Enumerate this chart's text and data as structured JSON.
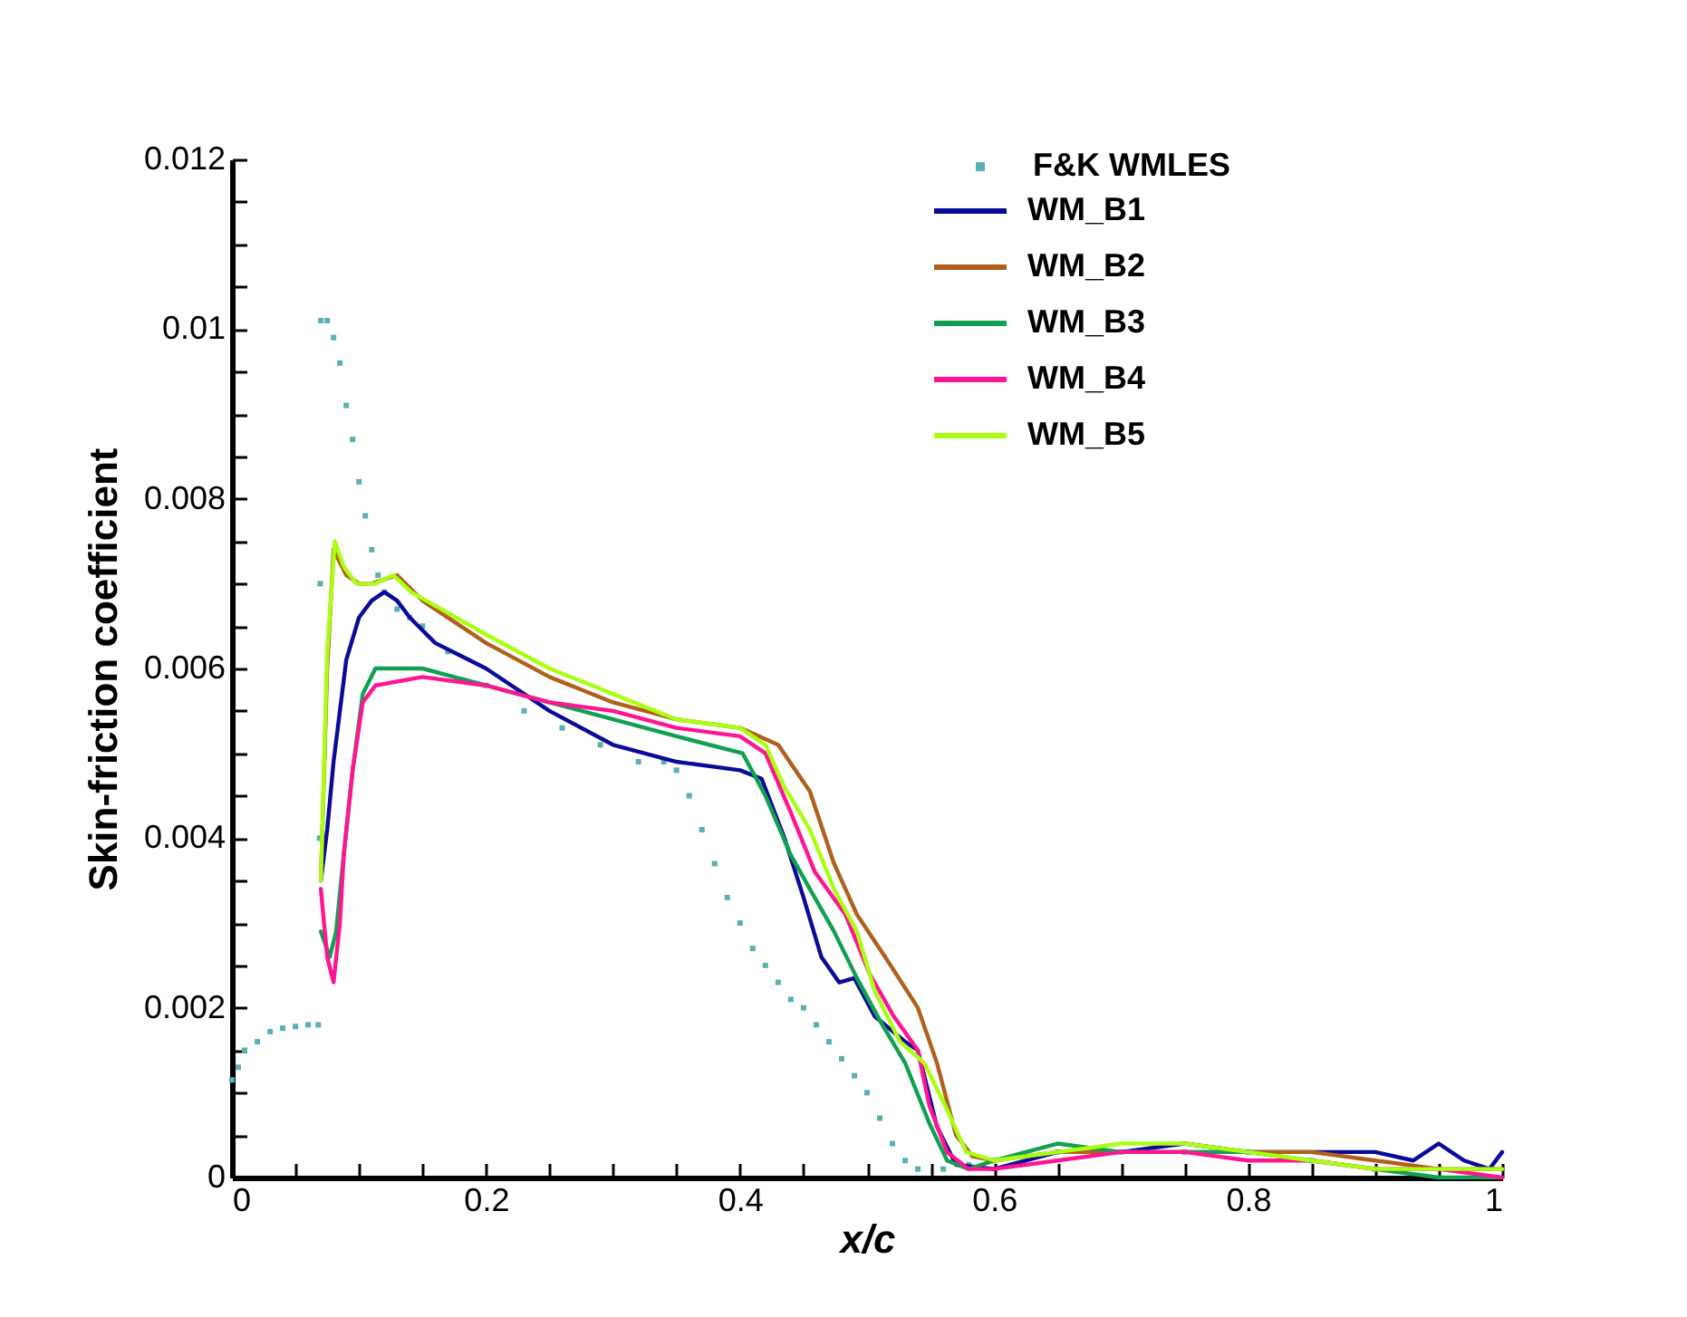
{
  "chart_data": {
    "type": "line",
    "xlabel": "x/c",
    "ylabel": "Skin-friction coefficient",
    "xlim": [
      0,
      1
    ],
    "ylim": [
      0,
      0.012
    ],
    "xticks": [
      0,
      {
        "value": 0.05,
        "label": null
      },
      {
        "value": 0.1,
        "label": null
      },
      {
        "value": 0.15,
        "label": null
      },
      0.2,
      {
        "value": 0.25,
        "label": null
      },
      {
        "value": 0.3,
        "label": null
      },
      {
        "value": 0.35,
        "label": null
      },
      0.4,
      {
        "value": 0.45,
        "label": null
      },
      {
        "value": 0.5,
        "label": null
      },
      {
        "value": 0.55,
        "label": null
      },
      0.6,
      {
        "value": 0.65,
        "label": null
      },
      {
        "value": 0.7,
        "label": null
      },
      {
        "value": 0.75,
        "label": null
      },
      0.8,
      {
        "value": 0.85,
        "label": null
      },
      {
        "value": 0.9,
        "label": null
      },
      {
        "value": 0.95,
        "label": null
      },
      1
    ],
    "yticks": [
      0,
      {
        "value": 0.0005,
        "label": null
      },
      {
        "value": 0.001,
        "label": null
      },
      {
        "value": 0.0015,
        "label": null
      },
      0.002,
      {
        "value": 0.0025,
        "label": null
      },
      {
        "value": 0.003,
        "label": null
      },
      {
        "value": 0.0035,
        "label": null
      },
      0.004,
      {
        "value": 0.0045,
        "label": null
      },
      {
        "value": 0.005,
        "label": null
      },
      {
        "value": 0.0055,
        "label": null
      },
      0.006,
      {
        "value": 0.0065,
        "label": null
      },
      {
        "value": 0.007,
        "label": null
      },
      {
        "value": 0.0075,
        "label": null
      },
      0.008,
      {
        "value": 0.0085,
        "label": null
      },
      {
        "value": 0.009,
        "label": null
      },
      {
        "value": 0.0095,
        "label": null
      },
      0.01,
      {
        "value": 0.0105,
        "label": null
      },
      {
        "value": 0.011,
        "label": null
      },
      {
        "value": 0.0115,
        "label": null
      },
      0.012
    ],
    "grid": false,
    "legend": "top right",
    "line_style": "solid",
    "series": [
      {
        "name": "F&K WMLES",
        "type": "scatter",
        "marker": "square",
        "color": "#5ab0b0",
        "x": [
          0,
          0.005,
          0.01,
          0.02,
          0.03,
          0.04,
          0.05,
          0.06,
          0.068,
          0.069,
          0.0695,
          0.07,
          0.075,
          0.08,
          0.085,
          0.09,
          0.095,
          0.1,
          0.105,
          0.11,
          0.115,
          0.12,
          0.13,
          0.14,
          0.15,
          0.17,
          0.2,
          0.23,
          0.26,
          0.29,
          0.32,
          0.34,
          0.35,
          0.36,
          0.37,
          0.38,
          0.39,
          0.4,
          0.41,
          0.42,
          0.43,
          0.44,
          0.45,
          0.46,
          0.47,
          0.48,
          0.49,
          0.5,
          0.51,
          0.52,
          0.53,
          0.54,
          0.56,
          0.58,
          0.6,
          0.65,
          0.7,
          0.75,
          0.8,
          0.85,
          0.9
        ],
        "values": [
          0.00115,
          0.0013,
          0.0015,
          0.0016,
          0.00172,
          0.00176,
          0.00178,
          0.0018,
          0.0018,
          0.004,
          0.007,
          0.0101,
          0.0101,
          0.0099,
          0.0096,
          0.0091,
          0.0087,
          0.0082,
          0.0078,
          0.0074,
          0.0071,
          0.0069,
          0.0067,
          0.0066,
          0.0065,
          0.0062,
          0.0058,
          0.0055,
          0.0053,
          0.0051,
          0.0049,
          0.0049,
          0.0048,
          0.0045,
          0.0041,
          0.0037,
          0.0033,
          0.003,
          0.0027,
          0.0025,
          0.0023,
          0.0021,
          0.002,
          0.0018,
          0.0016,
          0.0014,
          0.0012,
          0.001,
          0.0007,
          0.0004,
          0.0002,
          0.0001,
          0.0001,
          0.00015,
          0.0002,
          0.0003,
          0.0003,
          0.0003,
          0.0003,
          0.0002,
          0.0001
        ]
      },
      {
        "name": "WM_B1",
        "color": "#0a0a9a",
        "x": [
          0.07,
          0.075,
          0.08,
          0.085,
          0.09,
          0.1,
          0.11,
          0.12,
          0.13,
          0.14,
          0.16,
          0.2,
          0.25,
          0.3,
          0.35,
          0.4,
          0.417,
          0.435,
          0.45,
          0.464,
          0.478,
          0.49,
          0.506,
          0.53,
          0.54,
          0.555,
          0.57,
          0.6,
          0.65,
          0.7,
          0.75,
          0.8,
          0.85,
          0.9,
          0.93,
          0.95,
          0.97,
          0.99,
          1
        ],
        "values": [
          0.0035,
          0.0041,
          0.0049,
          0.0055,
          0.0061,
          0.0066,
          0.0068,
          0.0069,
          0.0068,
          0.0066,
          0.0063,
          0.006,
          0.0055,
          0.0051,
          0.0049,
          0.0048,
          0.0047,
          0.004,
          0.0033,
          0.0026,
          0.0023,
          0.00235,
          0.0019,
          0.0016,
          0.0015,
          0.0006,
          0.00015,
          0.0001,
          0.0003,
          0.0003,
          0.0004,
          0.0003,
          0.0003,
          0.0003,
          0.0002,
          0.0004,
          0.0002,
          0.0001,
          0.0003
        ]
      },
      {
        "name": "WM_B2",
        "color": "#b0601a",
        "x": [
          0.07,
          0.075,
          0.08,
          0.09,
          0.1,
          0.11,
          0.13,
          0.15,
          0.2,
          0.25,
          0.3,
          0.35,
          0.4,
          0.43,
          0.455,
          0.474,
          0.492,
          0.516,
          0.54,
          0.555,
          0.57,
          0.583,
          0.6,
          0.65,
          0.7,
          0.75,
          0.8,
          0.85,
          0.9,
          0.95,
          1
        ],
        "values": [
          0.0035,
          0.006,
          0.0074,
          0.0071,
          0.007,
          0.007,
          0.0071,
          0.0068,
          0.0063,
          0.0059,
          0.0056,
          0.0054,
          0.0053,
          0.0051,
          0.00455,
          0.0037,
          0.0031,
          0.00256,
          0.002,
          0.00135,
          0.0005,
          0.00025,
          0.0002,
          0.0003,
          0.0003,
          0.0003,
          0.0003,
          0.0003,
          0.0002,
          0.0001,
          0.0001
        ]
      },
      {
        "name": "WM_B3",
        "color": "#10a050",
        "x": [
          0.07,
          0.077,
          0.082,
          0.088,
          0.095,
          0.103,
          0.113,
          0.15,
          0.2,
          0.25,
          0.3,
          0.35,
          0.402,
          0.42,
          0.44,
          0.455,
          0.474,
          0.492,
          0.512,
          0.53,
          0.549,
          0.563,
          0.58,
          0.6,
          0.65,
          0.7,
          0.75,
          0.8,
          0.85,
          0.9,
          0.95,
          1
        ],
        "values": [
          0.0029,
          0.0026,
          0.0029,
          0.0038,
          0.0048,
          0.0057,
          0.006,
          0.006,
          0.0058,
          0.0056,
          0.0054,
          0.0052,
          0.005,
          0.0045,
          0.0038,
          0.0034,
          0.0029,
          0.00235,
          0.0018,
          0.00135,
          0.00064,
          0.0002,
          0.0001,
          0.0002,
          0.0004,
          0.0003,
          0.0003,
          0.0003,
          0.0002,
          0.0001,
          0,
          0
        ]
      },
      {
        "name": "WM_B4",
        "color": "#ff1493",
        "x": [
          0.07,
          0.075,
          0.08,
          0.085,
          0.088,
          0.095,
          0.103,
          0.113,
          0.15,
          0.2,
          0.25,
          0.3,
          0.35,
          0.4,
          0.42,
          0.44,
          0.459,
          0.483,
          0.502,
          0.521,
          0.54,
          0.549,
          0.563,
          0.58,
          0.6,
          0.65,
          0.7,
          0.75,
          0.8,
          0.85,
          0.9,
          0.95,
          1
        ],
        "values": [
          0.0034,
          0.0026,
          0.0023,
          0.003,
          0.0038,
          0.0048,
          0.0056,
          0.0058,
          0.0059,
          0.0058,
          0.0056,
          0.0055,
          0.0053,
          0.0052,
          0.005,
          0.0043,
          0.0036,
          0.0031,
          0.0024,
          0.0019,
          0.0015,
          0.00085,
          0.0003,
          0.0001,
          0.0001,
          0.0002,
          0.0003,
          0.0003,
          0.0002,
          0.0002,
          0.0001,
          0.0001,
          0
        ]
      },
      {
        "name": "WM_B5",
        "color": "#aaff10",
        "x": [
          0.07,
          0.075,
          0.081,
          0.088,
          0.098,
          0.113,
          0.127,
          0.141,
          0.2,
          0.25,
          0.3,
          0.35,
          0.4,
          0.42,
          0.435,
          0.455,
          0.474,
          0.492,
          0.506,
          0.526,
          0.545,
          0.563,
          0.578,
          0.6,
          0.65,
          0.7,
          0.75,
          0.8,
          0.85,
          0.9,
          0.95,
          1
        ],
        "values": [
          0.0035,
          0.0062,
          0.0075,
          0.0072,
          0.007,
          0.007,
          0.0071,
          0.0069,
          0.0064,
          0.006,
          0.0057,
          0.0054,
          0.0053,
          0.0051,
          0.0046,
          0.0041,
          0.0034,
          0.0029,
          0.0022,
          0.0016,
          0.00135,
          0.0008,
          0.0003,
          0.0002,
          0.0003,
          0.0004,
          0.0004,
          0.0003,
          0.0002,
          0.0001,
          0.0001,
          0.0001
        ]
      }
    ]
  }
}
